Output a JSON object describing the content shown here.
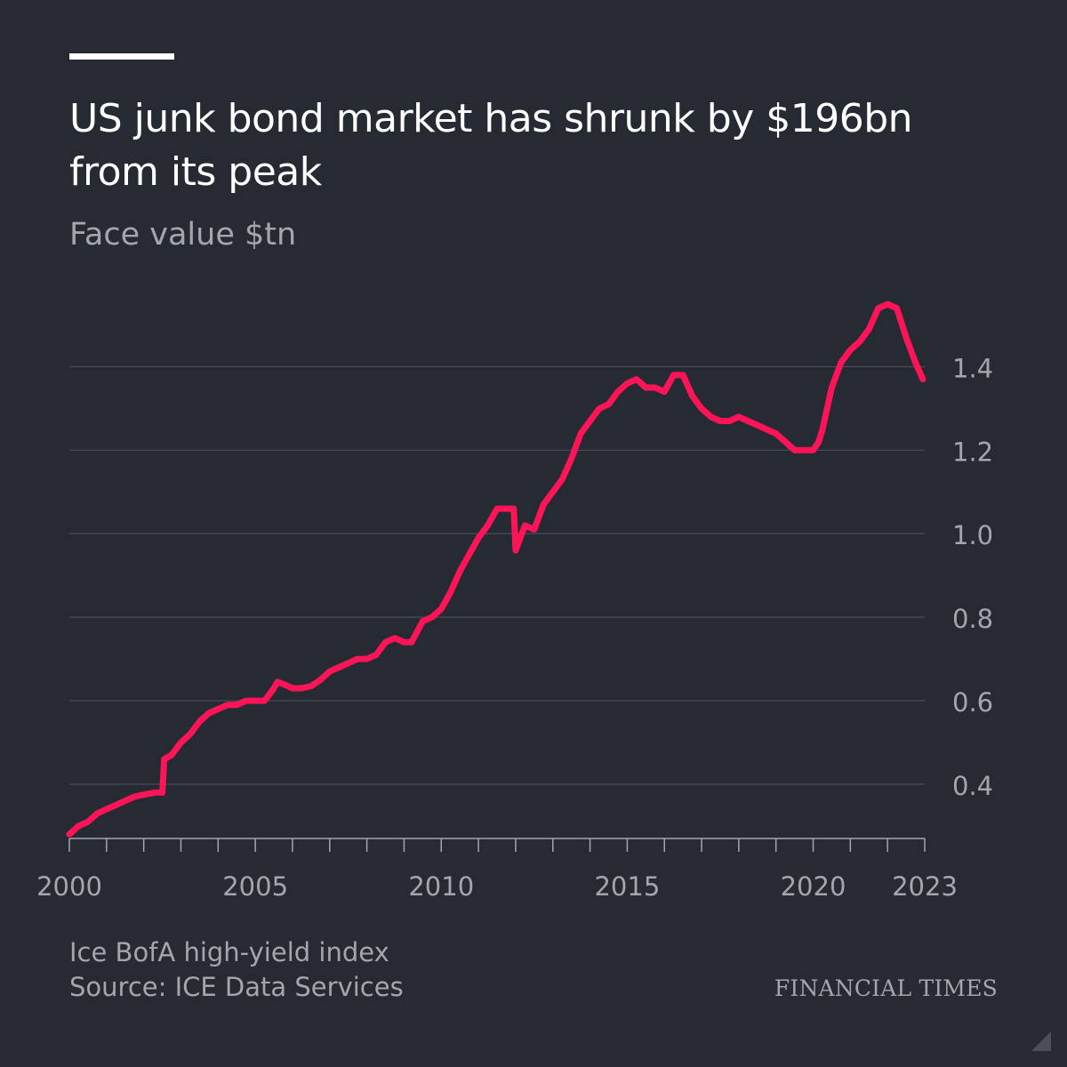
{
  "header": {
    "title": "US junk bond market has shrunk by $196bn from its peak",
    "subtitle": "Face value $tn"
  },
  "footer": {
    "note": "Ice BofA high-yield index",
    "source": "Source: ICE Data Services",
    "brand": "FINANCIAL TIMES"
  },
  "colors": {
    "background": "#262a33",
    "line": "#ff1457",
    "grid": "#4a4e57",
    "text_muted": "#a4a6ab",
    "text_primary": "#ffffff"
  },
  "chart_data": {
    "type": "line",
    "title": "US junk bond market has shrunk by $196bn from its peak",
    "subtitle": "Face value $tn",
    "xlabel": "",
    "ylabel": "",
    "xlim": [
      2000,
      2023
    ],
    "ylim": [
      0.27,
      1.55
    ],
    "x_ticks": [
      "2000",
      "2005",
      "2010",
      "2015",
      "2020",
      "2023"
    ],
    "y_ticks": [
      "0.4",
      "0.6",
      "0.8",
      "1.0",
      "1.2",
      "1.4"
    ],
    "grid": "horizontal",
    "legend": "none",
    "series": [
      {
        "name": "",
        "x": [
          2000.0,
          2000.25,
          2000.5,
          2000.75,
          2001.0,
          2001.25,
          2001.5,
          2001.75,
          2002.0,
          2002.3,
          2002.5,
          2002.55,
          2002.75,
          2003.0,
          2003.25,
          2003.5,
          2003.75,
          2004.0,
          2004.25,
          2004.5,
          2004.75,
          2005.0,
          2005.25,
          2005.5,
          2005.6,
          2005.75,
          2006.0,
          2006.25,
          2006.5,
          2006.75,
          2007.0,
          2007.25,
          2007.5,
          2007.75,
          2008.0,
          2008.25,
          2008.5,
          2008.75,
          2009.0,
          2009.2,
          2009.5,
          2009.75,
          2010.0,
          2010.25,
          2010.5,
          2010.75,
          2011.0,
          2011.25,
          2011.5,
          2011.75,
          2011.95,
          2012.0,
          2012.25,
          2012.5,
          2012.75,
          2013.0,
          2013.25,
          2013.5,
          2013.75,
          2014.0,
          2014.25,
          2014.5,
          2014.75,
          2015.0,
          2015.25,
          2015.5,
          2015.75,
          2016.0,
          2016.25,
          2016.5,
          2016.75,
          2017.0,
          2017.25,
          2017.5,
          2017.75,
          2018.0,
          2018.25,
          2018.5,
          2018.75,
          2019.0,
          2019.25,
          2019.5,
          2019.75,
          2020.0,
          2020.15,
          2020.25,
          2020.5,
          2020.75,
          2021.0,
          2021.25,
          2021.5,
          2021.75,
          2022.0,
          2022.25,
          2022.5,
          2022.75,
          2022.95
        ],
        "values": [
          0.28,
          0.3,
          0.31,
          0.33,
          0.34,
          0.35,
          0.36,
          0.37,
          0.375,
          0.38,
          0.38,
          0.46,
          0.47,
          0.5,
          0.52,
          0.55,
          0.57,
          0.58,
          0.59,
          0.59,
          0.6,
          0.6,
          0.6,
          0.63,
          0.645,
          0.64,
          0.63,
          0.63,
          0.635,
          0.65,
          0.67,
          0.68,
          0.69,
          0.7,
          0.7,
          0.71,
          0.74,
          0.75,
          0.74,
          0.74,
          0.79,
          0.8,
          0.82,
          0.86,
          0.91,
          0.95,
          0.99,
          1.02,
          1.06,
          1.06,
          1.06,
          0.96,
          1.02,
          1.01,
          1.07,
          1.1,
          1.13,
          1.18,
          1.24,
          1.27,
          1.3,
          1.31,
          1.34,
          1.36,
          1.37,
          1.35,
          1.35,
          1.34,
          1.38,
          1.38,
          1.33,
          1.3,
          1.28,
          1.27,
          1.27,
          1.28,
          1.27,
          1.26,
          1.25,
          1.24,
          1.22,
          1.2,
          1.2,
          1.2,
          1.22,
          1.25,
          1.35,
          1.41,
          1.44,
          1.46,
          1.49,
          1.54,
          1.55,
          1.54,
          1.47,
          1.41,
          1.37
        ]
      }
    ]
  }
}
